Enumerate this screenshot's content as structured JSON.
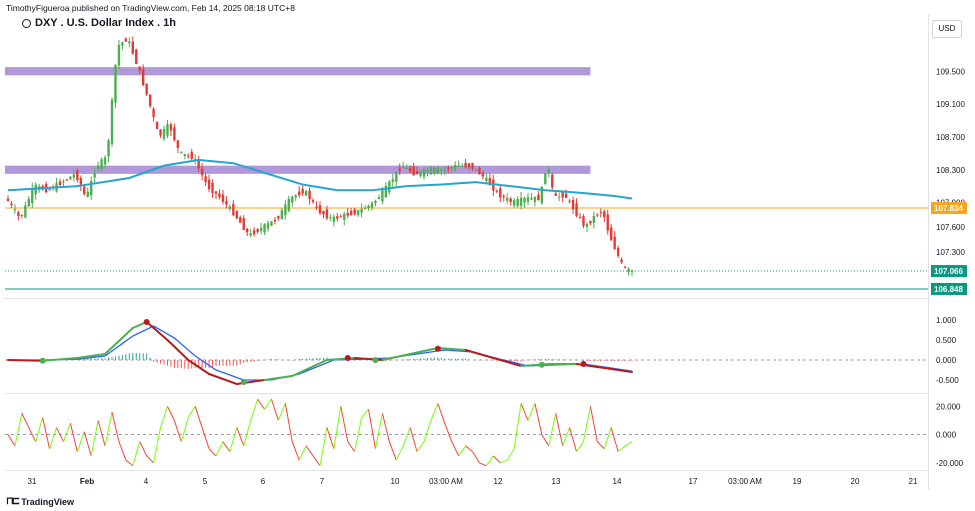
{
  "header": {
    "publisher": "TimothyFigueroa published on TradingView.com, Feb 14, 2025 08:18 UTC+8",
    "title": "DXY . U.S. Dollar Index . 1h",
    "currency_button": "USD"
  },
  "footer": {
    "logo_text": "TradingView"
  },
  "chart_data": {
    "type": "candlestick",
    "x_axis": {
      "ticks": [
        "31",
        "Feb",
        "4",
        "5",
        "6",
        "7",
        "10",
        "03:00 AM",
        "12",
        "13",
        "14",
        "17",
        "03:00 AM",
        "19",
        "20",
        "21"
      ]
    },
    "main_pane": {
      "y_ticks": [
        109.5,
        109.1,
        108.7,
        108.3,
        107.9,
        107.6,
        107.3
      ],
      "y_range": [
        106.75,
        110.1
      ],
      "price_series": [
        {
          "t": 0,
          "p": 107.95
        },
        {
          "t": 4,
          "p": 107.7
        },
        {
          "t": 8,
          "p": 108.1
        },
        {
          "t": 12,
          "p": 108.05
        },
        {
          "t": 16,
          "p": 108.15
        },
        {
          "t": 20,
          "p": 108.25
        },
        {
          "t": 23,
          "p": 107.95
        },
        {
          "t": 26,
          "p": 108.35
        },
        {
          "t": 29,
          "p": 108.45
        },
        {
          "t": 32,
          "p": 109.8
        },
        {
          "t": 35,
          "p": 109.9
        },
        {
          "t": 38,
          "p": 109.55
        },
        {
          "t": 41,
          "p": 109.15
        },
        {
          "t": 44,
          "p": 108.7
        },
        {
          "t": 47,
          "p": 108.85
        },
        {
          "t": 50,
          "p": 108.5
        },
        {
          "t": 54,
          "p": 108.45
        },
        {
          "t": 58,
          "p": 108.1
        },
        {
          "t": 62,
          "p": 107.95
        },
        {
          "t": 66,
          "p": 107.75
        },
        {
          "t": 70,
          "p": 107.5
        },
        {
          "t": 74,
          "p": 107.6
        },
        {
          "t": 78,
          "p": 107.7
        },
        {
          "t": 82,
          "p": 107.95
        },
        {
          "t": 86,
          "p": 108.05
        },
        {
          "t": 90,
          "p": 107.8
        },
        {
          "t": 94,
          "p": 107.7
        },
        {
          "t": 98,
          "p": 107.75
        },
        {
          "t": 102,
          "p": 107.8
        },
        {
          "t": 106,
          "p": 107.9
        },
        {
          "t": 110,
          "p": 108.1
        },
        {
          "t": 114,
          "p": 108.35
        },
        {
          "t": 118,
          "p": 108.25
        },
        {
          "t": 122,
          "p": 108.3
        },
        {
          "t": 126,
          "p": 108.3
        },
        {
          "t": 130,
          "p": 108.35
        },
        {
          "t": 134,
          "p": 108.35
        },
        {
          "t": 138,
          "p": 108.2
        },
        {
          "t": 142,
          "p": 108.0
        },
        {
          "t": 146,
          "p": 107.9
        },
        {
          "t": 150,
          "p": 107.95
        },
        {
          "t": 154,
          "p": 107.95
        },
        {
          "t": 156,
          "p": 108.4
        },
        {
          "t": 158,
          "p": 107.95
        },
        {
          "t": 161,
          "p": 108.0
        },
        {
          "t": 164,
          "p": 107.8
        },
        {
          "t": 167,
          "p": 107.6
        },
        {
          "t": 170,
          "p": 107.75
        },
        {
          "t": 172,
          "p": 107.8
        },
        {
          "t": 174,
          "p": 107.5
        },
        {
          "t": 176,
          "p": 107.3
        },
        {
          "t": 178,
          "p": 107.1
        },
        {
          "t": 180,
          "p": 107.066
        }
      ],
      "moving_average": [
        {
          "t": 0,
          "p": 108.05
        },
        {
          "t": 20,
          "p": 108.1
        },
        {
          "t": 35,
          "p": 108.2
        },
        {
          "t": 45,
          "p": 108.35
        },
        {
          "t": 55,
          "p": 108.42
        },
        {
          "t": 65,
          "p": 108.38
        },
        {
          "t": 75,
          "p": 108.25
        },
        {
          "t": 85,
          "p": 108.12
        },
        {
          "t": 95,
          "p": 108.05
        },
        {
          "t": 105,
          "p": 108.05
        },
        {
          "t": 115,
          "p": 108.1
        },
        {
          "t": 125,
          "p": 108.12
        },
        {
          "t": 135,
          "p": 108.15
        },
        {
          "t": 145,
          "p": 108.1
        },
        {
          "t": 155,
          "p": 108.05
        },
        {
          "t": 165,
          "p": 108.02
        },
        {
          "t": 175,
          "p": 107.98
        },
        {
          "t": 180,
          "p": 107.95
        }
      ],
      "zones": [
        {
          "from_t": 0,
          "to_t": 168,
          "low": 109.45,
          "high": 109.55
        },
        {
          "from_t": 0,
          "to_t": 168,
          "low": 108.25,
          "high": 108.35
        }
      ],
      "horizontal_lines": [
        {
          "price": 107.834,
          "label": "107.834",
          "color": "#f5a623"
        },
        {
          "price": 106.848,
          "label": "106.848",
          "color": "#089981"
        }
      ],
      "last_price": {
        "price": 107.066,
        "label": "107.066",
        "color": "#089981"
      }
    },
    "macd_pane": {
      "y_ticks": [
        1.0,
        0.5,
        0.0,
        -0.5
      ],
      "y_range": [
        -0.8,
        1.5
      ],
      "macd_line": [
        {
          "t": 0,
          "v": 0.0
        },
        {
          "t": 10,
          "v": -0.02
        },
        {
          "t": 20,
          "v": 0.05
        },
        {
          "t": 28,
          "v": 0.15
        },
        {
          "t": 36,
          "v": 0.8
        },
        {
          "t": 40,
          "v": 0.95
        },
        {
          "t": 46,
          "v": 0.5
        },
        {
          "t": 52,
          "v": 0.0
        },
        {
          "t": 58,
          "v": -0.35
        },
        {
          "t": 66,
          "v": -0.6
        },
        {
          "t": 74,
          "v": -0.5
        },
        {
          "t": 82,
          "v": -0.4
        },
        {
          "t": 92,
          "v": 0.0
        },
        {
          "t": 100,
          "v": 0.05
        },
        {
          "t": 108,
          "v": 0.0
        },
        {
          "t": 116,
          "v": 0.15
        },
        {
          "t": 124,
          "v": 0.3
        },
        {
          "t": 132,
          "v": 0.25
        },
        {
          "t": 140,
          "v": 0.05
        },
        {
          "t": 148,
          "v": -0.15
        },
        {
          "t": 156,
          "v": -0.1
        },
        {
          "t": 164,
          "v": -0.1
        },
        {
          "t": 172,
          "v": -0.2
        },
        {
          "t": 180,
          "v": -0.3
        }
      ],
      "signal_line": [
        {
          "t": 0,
          "v": 0.0
        },
        {
          "t": 10,
          "v": 0.0
        },
        {
          "t": 20,
          "v": 0.02
        },
        {
          "t": 28,
          "v": 0.1
        },
        {
          "t": 36,
          "v": 0.6
        },
        {
          "t": 42,
          "v": 0.85
        },
        {
          "t": 48,
          "v": 0.55
        },
        {
          "t": 54,
          "v": 0.1
        },
        {
          "t": 60,
          "v": -0.25
        },
        {
          "t": 68,
          "v": -0.5
        },
        {
          "t": 76,
          "v": -0.5
        },
        {
          "t": 84,
          "v": -0.35
        },
        {
          "t": 94,
          "v": 0.0
        },
        {
          "t": 102,
          "v": 0.02
        },
        {
          "t": 110,
          "v": 0.05
        },
        {
          "t": 118,
          "v": 0.15
        },
        {
          "t": 126,
          "v": 0.25
        },
        {
          "t": 134,
          "v": 0.2
        },
        {
          "t": 142,
          "v": 0.02
        },
        {
          "t": 150,
          "v": -0.15
        },
        {
          "t": 158,
          "v": -0.12
        },
        {
          "t": 166,
          "v": -0.1
        },
        {
          "t": 174,
          "v": -0.2
        },
        {
          "t": 180,
          "v": -0.28
        }
      ],
      "cross_points": [
        {
          "t": 10,
          "v": -0.02,
          "color": "#4caf50"
        },
        {
          "t": 40,
          "v": 0.95,
          "color": "#b71c1c"
        },
        {
          "t": 68,
          "v": -0.55,
          "color": "#4caf50"
        },
        {
          "t": 98,
          "v": 0.05,
          "color": "#b71c1c"
        },
        {
          "t": 106,
          "v": 0.0,
          "color": "#4caf50"
        },
        {
          "t": 124,
          "v": 0.28,
          "color": "#b71c1c"
        },
        {
          "t": 154,
          "v": -0.12,
          "color": "#4caf50"
        },
        {
          "t": 166,
          "v": -0.1,
          "color": "#b71c1c"
        }
      ]
    },
    "oscillator_pane": {
      "y_ticks": [
        20.0,
        0.0,
        -20.0
      ],
      "y_range": [
        -25,
        28
      ],
      "series": [
        {
          "t": 0,
          "v": 0
        },
        {
          "t": 2,
          "v": -8
        },
        {
          "t": 4,
          "v": 15
        },
        {
          "t": 6,
          "v": 5
        },
        {
          "t": 8,
          "v": -5
        },
        {
          "t": 10,
          "v": 12
        },
        {
          "t": 12,
          "v": -10
        },
        {
          "t": 14,
          "v": 5
        },
        {
          "t": 16,
          "v": -5
        },
        {
          "t": 18,
          "v": 8
        },
        {
          "t": 20,
          "v": -12
        },
        {
          "t": 22,
          "v": 2
        },
        {
          "t": 24,
          "v": -15
        },
        {
          "t": 26,
          "v": 10
        },
        {
          "t": 28,
          "v": -8
        },
        {
          "t": 30,
          "v": 16
        },
        {
          "t": 32,
          "v": -5
        },
        {
          "t": 34,
          "v": -18
        },
        {
          "t": 36,
          "v": -22
        },
        {
          "t": 38,
          "v": -5
        },
        {
          "t": 40,
          "v": -15
        },
        {
          "t": 42,
          "v": -20
        },
        {
          "t": 44,
          "v": 5
        },
        {
          "t": 46,
          "v": 20
        },
        {
          "t": 48,
          "v": 10
        },
        {
          "t": 50,
          "v": -5
        },
        {
          "t": 52,
          "v": 12
        },
        {
          "t": 54,
          "v": 20
        },
        {
          "t": 56,
          "v": 5
        },
        {
          "t": 58,
          "v": -10
        },
        {
          "t": 60,
          "v": -15
        },
        {
          "t": 62,
          "v": -5
        },
        {
          "t": 64,
          "v": -12
        },
        {
          "t": 66,
          "v": 5
        },
        {
          "t": 68,
          "v": -8
        },
        {
          "t": 70,
          "v": 10
        },
        {
          "t": 72,
          "v": 25
        },
        {
          "t": 74,
          "v": 18
        },
        {
          "t": 76,
          "v": 25
        },
        {
          "t": 78,
          "v": 10
        },
        {
          "t": 80,
          "v": 22
        },
        {
          "t": 82,
          "v": -5
        },
        {
          "t": 84,
          "v": -18
        },
        {
          "t": 86,
          "v": -8
        },
        {
          "t": 88,
          "v": -15
        },
        {
          "t": 90,
          "v": -22
        },
        {
          "t": 92,
          "v": 5
        },
        {
          "t": 94,
          "v": -10
        },
        {
          "t": 96,
          "v": 20
        },
        {
          "t": 98,
          "v": -5
        },
        {
          "t": 100,
          "v": -12
        },
        {
          "t": 102,
          "v": 12
        },
        {
          "t": 104,
          "v": 18
        },
        {
          "t": 106,
          "v": -10
        },
        {
          "t": 108,
          "v": 15
        },
        {
          "t": 110,
          "v": -5
        },
        {
          "t": 112,
          "v": -18
        },
        {
          "t": 114,
          "v": -8
        },
        {
          "t": 116,
          "v": 5
        },
        {
          "t": 118,
          "v": -12
        },
        {
          "t": 120,
          "v": -5
        },
        {
          "t": 122,
          "v": 10
        },
        {
          "t": 124,
          "v": 22
        },
        {
          "t": 126,
          "v": 8
        },
        {
          "t": 128,
          "v": -5
        },
        {
          "t": 130,
          "v": -15
        },
        {
          "t": 132,
          "v": -8
        },
        {
          "t": 134,
          "v": -12
        },
        {
          "t": 136,
          "v": -20
        },
        {
          "t": 138,
          "v": -22
        },
        {
          "t": 140,
          "v": -15
        },
        {
          "t": 142,
          "v": -20
        },
        {
          "t": 144,
          "v": -18
        },
        {
          "t": 146,
          "v": -10
        },
        {
          "t": 148,
          "v": 22
        },
        {
          "t": 150,
          "v": 10
        },
        {
          "t": 152,
          "v": 22
        },
        {
          "t": 154,
          "v": 0
        },
        {
          "t": 156,
          "v": -8
        },
        {
          "t": 158,
          "v": 15
        },
        {
          "t": 160,
          "v": -8
        },
        {
          "t": 162,
          "v": 5
        },
        {
          "t": 164,
          "v": -12
        },
        {
          "t": 166,
          "v": -5
        },
        {
          "t": 168,
          "v": 20
        },
        {
          "t": 170,
          "v": -5
        },
        {
          "t": 172,
          "v": -10
        },
        {
          "t": 174,
          "v": 5
        },
        {
          "t": 176,
          "v": -12
        },
        {
          "t": 178,
          "v": -8
        },
        {
          "t": 180,
          "v": -5
        }
      ]
    }
  },
  "colors": {
    "up": "#4caf50",
    "down": "#e53935",
    "ma": "#26a5d0",
    "zone": "#9575cd",
    "macd": "#b71c1c",
    "signal": "#2962ff",
    "macd_green": "#4caf50",
    "grid": "#f0f3fa",
    "zero_line": "#787b86"
  }
}
